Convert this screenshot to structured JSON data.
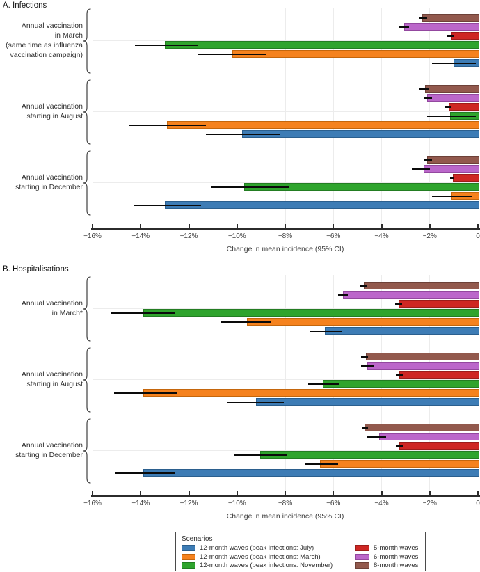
{
  "palette": {
    "jul": {
      "label": "12-month waves (peak infections: July)",
      "fill": "#3d7cb5",
      "border": "#2b5f8e"
    },
    "mar": {
      "label": "12-month waves (peak infections: March)",
      "fill": "#f5821e",
      "border": "#c4660c"
    },
    "nov": {
      "label": "12-month waves (peak infections: November)",
      "fill": "#2fa42d",
      "border": "#237d22"
    },
    "m5": {
      "label": "5-month waves",
      "fill": "#ce2723",
      "border": "#9c1d1a"
    },
    "m6": {
      "label": "6-month waves",
      "fill": "#bb67ca",
      "border": "#93489f"
    },
    "m8": {
      "label": "8-month waves",
      "fill": "#92594d",
      "border": "#6d4138"
    }
  },
  "legend": {
    "title": "Scenarios",
    "columns": [
      [
        {
          "key": "jul",
          "label": "12-month waves (peak infections: July)"
        },
        {
          "key": "mar",
          "label": "12-month waves (peak infections: March)"
        },
        {
          "key": "nov",
          "label": "12-month waves (peak infections: November)"
        }
      ],
      [
        {
          "key": "m5",
          "label": "5-month waves"
        },
        {
          "key": "m6",
          "label": "6-month waves"
        },
        {
          "key": "m8",
          "label": "8-month waves"
        }
      ]
    ]
  },
  "chart_data": [
    {
      "type": "bar",
      "orientation": "horizontal",
      "title": "A. Infections",
      "xlabel": "Change in mean incidence (95% CI)",
      "xlim": [
        -16,
        0
      ],
      "grid": true,
      "x_ticks": [
        {
          "value": -16,
          "label": "−16%"
        },
        {
          "value": -14,
          "label": "−14%"
        },
        {
          "value": -12,
          "label": "−12%"
        },
        {
          "value": -10,
          "label": "−10%"
        },
        {
          "value": -8,
          "label": "−8%"
        },
        {
          "value": -6,
          "label": "−6%"
        },
        {
          "value": -4,
          "label": "−4%"
        },
        {
          "value": -2,
          "label": "−2%"
        },
        {
          "value": 0,
          "label": "0"
        }
      ],
      "groups": [
        {
          "label_lines": [
            "Annual vaccination",
            "in March",
            "(same time as influenza",
            "vaccination campaign)"
          ],
          "bars": [
            {
              "series_key": "m8",
              "value": -2.3,
              "ci": [
                -2.45,
                -2.1
              ]
            },
            {
              "series_key": "m6",
              "value": -3.05,
              "ci": [
                -3.3,
                -2.85
              ]
            },
            {
              "series_key": "m5",
              "value": -1.1,
              "ci": [
                -1.3,
                -1.0
              ]
            },
            {
              "series_key": "nov",
              "value": -13.0,
              "ci": [
                -14.25,
                -11.6
              ]
            },
            {
              "series_key": "mar",
              "value": -10.2,
              "ci": [
                -11.6,
                -8.8
              ]
            },
            {
              "series_key": "jul",
              "value": -1.0,
              "ci": [
                -1.9,
                -0.1
              ]
            }
          ]
        },
        {
          "label_lines": [
            "Annual vaccination",
            "starting in August"
          ],
          "bars": [
            {
              "series_key": "m8",
              "value": -2.2,
              "ci": [
                -2.45,
                -2.05
              ]
            },
            {
              "series_key": "m6",
              "value": -2.1,
              "ci": [
                -2.25,
                -1.9
              ]
            },
            {
              "series_key": "m5",
              "value": -1.2,
              "ci": [
                -1.35,
                -1.1
              ]
            },
            {
              "series_key": "nov",
              "value": -1.15,
              "ci": [
                -2.1,
                -0.1
              ]
            },
            {
              "series_key": "mar",
              "value": -12.9,
              "ci": [
                -14.5,
                -11.3
              ]
            },
            {
              "series_key": "jul",
              "value": -9.8,
              "ci": [
                -11.3,
                -8.2
              ]
            }
          ]
        },
        {
          "label_lines": [
            "Annual vaccination",
            "starting in December"
          ],
          "bars": [
            {
              "series_key": "m8",
              "value": -2.1,
              "ci": [
                -2.25,
                -1.9
              ]
            },
            {
              "series_key": "m6",
              "value": -2.25,
              "ci": [
                -2.75,
                -2.0
              ]
            },
            {
              "series_key": "m5",
              "value": -1.05,
              "ci": [
                -1.15,
                -1.0
              ]
            },
            {
              "series_key": "nov",
              "value": -9.7,
              "ci": [
                -11.1,
                -7.85
              ]
            },
            {
              "series_key": "mar",
              "value": -1.1,
              "ci": [
                -1.9,
                -0.25
              ]
            },
            {
              "series_key": "jul",
              "value": -13.0,
              "ci": [
                -14.3,
                -11.5
              ]
            }
          ]
        }
      ]
    },
    {
      "type": "bar",
      "orientation": "horizontal",
      "title": "B. Hospitalisations",
      "xlabel": "Change in mean incidence (95% CI)",
      "xlim": [
        -16,
        0
      ],
      "grid": true,
      "x_ticks": [
        {
          "value": -16,
          "label": "−16%"
        },
        {
          "value": -14,
          "label": "−14%"
        },
        {
          "value": -12,
          "label": "−12%"
        },
        {
          "value": -10,
          "label": "−10%"
        },
        {
          "value": -8,
          "label": "−8%"
        },
        {
          "value": -6,
          "label": "−6%"
        },
        {
          "value": -4,
          "label": "−4%"
        },
        {
          "value": -2,
          "label": "−2%"
        },
        {
          "value": 0,
          "label": "0"
        }
      ],
      "groups": [
        {
          "label_lines": [
            "Annual vaccination",
            "in March*"
          ],
          "bars": [
            {
              "series_key": "m8",
              "value": -4.75,
              "ci": [
                -4.9,
                -4.6
              ]
            },
            {
              "series_key": "m6",
              "value": -5.6,
              "ci": [
                -5.8,
                -5.4
              ]
            },
            {
              "series_key": "m5",
              "value": -3.3,
              "ci": [
                -3.45,
                -3.15
              ]
            },
            {
              "series_key": "nov",
              "value": -13.9,
              "ci": [
                -15.25,
                -12.55
              ]
            },
            {
              "series_key": "mar",
              "value": -9.6,
              "ci": [
                -10.65,
                -8.6
              ]
            },
            {
              "series_key": "jul",
              "value": -6.35,
              "ci": [
                -6.95,
                -5.65
              ]
            }
          ]
        },
        {
          "label_lines": [
            "Annual vaccination",
            "starting in August"
          ],
          "bars": [
            {
              "series_key": "m8",
              "value": -4.65,
              "ci": [
                -4.85,
                -4.55
              ]
            },
            {
              "series_key": "m6",
              "value": -4.6,
              "ci": [
                -4.85,
                -4.3
              ]
            },
            {
              "series_key": "m5",
              "value": -3.25,
              "ci": [
                -3.4,
                -3.1
              ]
            },
            {
              "series_key": "nov",
              "value": -6.45,
              "ci": [
                -7.05,
                -5.75
              ]
            },
            {
              "series_key": "mar",
              "value": -13.9,
              "ci": [
                -15.1,
                -12.5
              ]
            },
            {
              "series_key": "jul",
              "value": -9.2,
              "ci": [
                -10.4,
                -8.05
              ]
            }
          ]
        },
        {
          "label_lines": [
            "Annual vaccination",
            "starting in December"
          ],
          "bars": [
            {
              "series_key": "m8",
              "value": -4.7,
              "ci": [
                -4.8,
                -4.55
              ]
            },
            {
              "series_key": "m6",
              "value": -4.1,
              "ci": [
                -4.6,
                -3.8
              ]
            },
            {
              "series_key": "m5",
              "value": -3.25,
              "ci": [
                -3.4,
                -3.1
              ]
            },
            {
              "series_key": "nov",
              "value": -9.05,
              "ci": [
                -10.15,
                -7.95
              ]
            },
            {
              "series_key": "mar",
              "value": -6.55,
              "ci": [
                -7.2,
                -5.8
              ]
            },
            {
              "series_key": "jul",
              "value": -13.9,
              "ci": [
                -15.05,
                -12.55
              ]
            }
          ]
        }
      ]
    }
  ]
}
